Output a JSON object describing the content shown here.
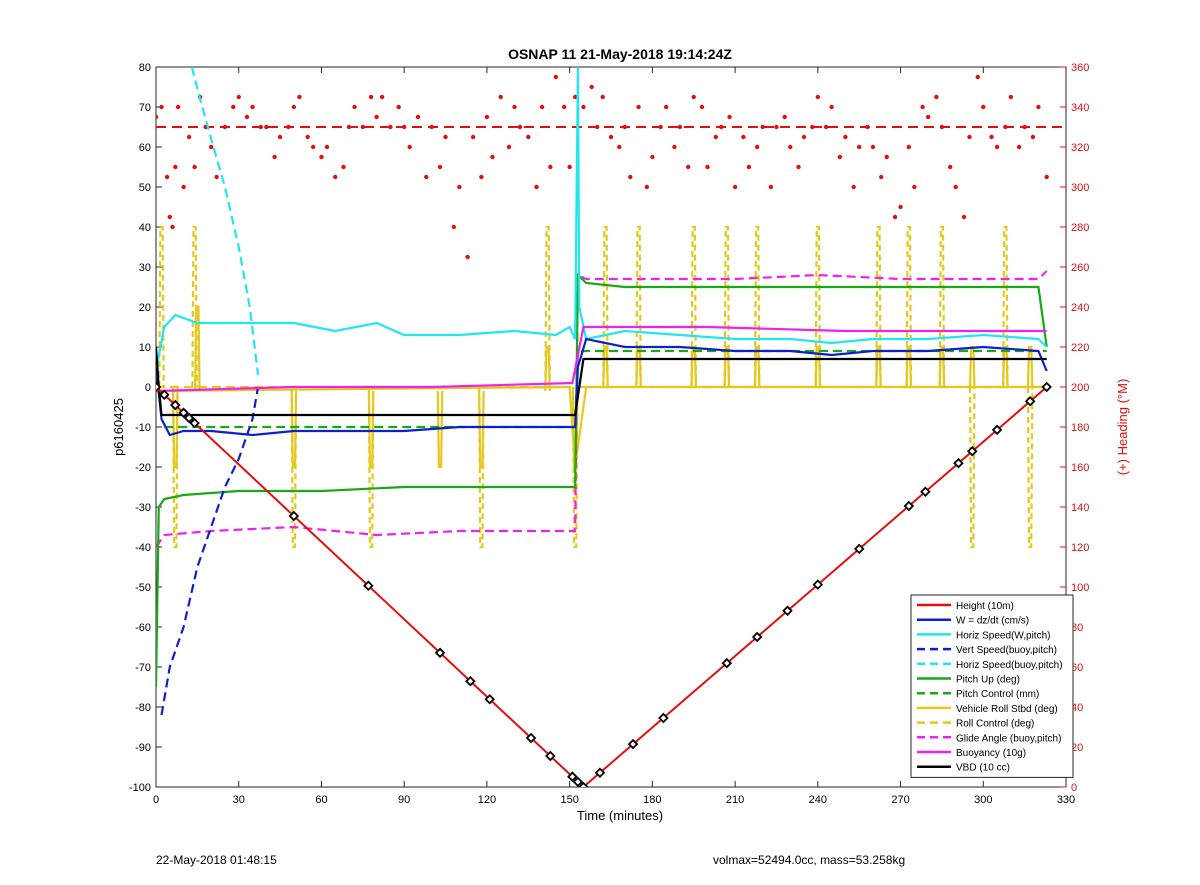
{
  "figure": {
    "footer_left": "22-May-2018 01:48:15",
    "footer_right": "volmax=52494.0cc, mass=53.258kg"
  },
  "chart_data": {
    "type": "line",
    "title": "OSNAP 11 21-May-2018 19:14:24Z",
    "xlabel": "Time (minutes)",
    "ylabel": "p6160425",
    "ylabel_right": "(+) Heading (°M)",
    "xlim": [
      0,
      330
    ],
    "ylim": [
      -100,
      80
    ],
    "ylim_right": [
      0,
      360
    ],
    "xticks": [
      0,
      30,
      60,
      90,
      120,
      150,
      180,
      210,
      240,
      270,
      300,
      330
    ],
    "yticks": [
      -100,
      -90,
      -80,
      -70,
      -60,
      -50,
      -40,
      -30,
      -20,
      -10,
      0,
      10,
      20,
      30,
      40,
      50,
      60,
      70,
      80
    ],
    "yticks_right": [
      0,
      20,
      40,
      60,
      80,
      100,
      120,
      140,
      160,
      180,
      200,
      220,
      240,
      260,
      280,
      300,
      320,
      340,
      360
    ],
    "grid": false,
    "legend_position": "bottom-right",
    "colors": {
      "red": "#e01010",
      "blue": "#1020c8",
      "cyan": "#22e6ee",
      "green": "#18a818",
      "yellow": "#e6c81c",
      "magenta": "#ee22ee",
      "black": "#000000",
      "axis_right": "#e01010"
    },
    "series": [
      {
        "name": "Height (10m)",
        "color": "#e01010",
        "style": "solid",
        "axis": "left",
        "x": [
          0,
          155,
          323
        ],
        "y": [
          0,
          -100,
          0
        ],
        "markers": [
          0,
          3,
          7,
          10,
          12,
          14,
          50,
          77,
          103,
          114,
          121,
          136,
          143,
          151,
          153,
          155,
          161,
          173,
          184,
          207,
          218,
          229,
          240,
          255,
          273,
          279,
          291,
          296,
          305,
          317,
          323
        ]
      },
      {
        "name": "W = dz/dt (cm/s)",
        "color": "#1020c8",
        "style": "solid",
        "axis": "left",
        "x": [
          0,
          2,
          5,
          10,
          20,
          35,
          50,
          70,
          90,
          110,
          130,
          145,
          152,
          153,
          156,
          170,
          190,
          210,
          230,
          245,
          260,
          280,
          300,
          320,
          323
        ],
        "y": [
          5,
          -8,
          -12,
          -11,
          -11,
          -12,
          -11,
          -11,
          -11,
          -10,
          -10,
          -10,
          -10,
          5,
          12,
          10,
          10,
          9,
          9,
          8,
          9,
          9,
          10,
          9,
          4
        ]
      },
      {
        "name": "Horiz Speed(W,pitch)",
        "color": "#22e6ee",
        "style": "solid",
        "axis": "left",
        "x": [
          0,
          3,
          7,
          15,
          30,
          50,
          65,
          80,
          90,
          110,
          130,
          145,
          150,
          152,
          153,
          153.5,
          156,
          170,
          190,
          210,
          230,
          245,
          260,
          280,
          300,
          320,
          323
        ],
        "y": [
          4,
          15,
          18,
          16,
          16,
          16,
          14,
          16,
          13,
          13,
          14,
          13,
          15,
          12,
          80,
          20,
          12,
          14,
          13,
          12,
          12,
          11,
          12,
          12,
          13,
          12,
          10
        ]
      },
      {
        "name": "Vert Speed(buoy,pitch)",
        "color": "#1020c8",
        "style": "dashed",
        "axis": "left",
        "x": [
          2,
          5,
          10,
          15,
          20,
          25,
          30,
          35,
          37
        ],
        "y": [
          -82,
          -70,
          -60,
          -45,
          -35,
          -25,
          -18,
          -8,
          0
        ]
      },
      {
        "name": "Horiz Speed(buoy,pitch)",
        "color": "#22e6ee",
        "style": "dashed",
        "axis": "left",
        "x": [
          13,
          16,
          20,
          25,
          30,
          34,
          37
        ],
        "y": [
          80,
          72,
          62,
          50,
          35,
          20,
          3
        ]
      },
      {
        "name": "Pitch Up (deg)",
        "color": "#18a818",
        "style": "solid",
        "axis": "left",
        "x": [
          0,
          1,
          3,
          10,
          30,
          60,
          90,
          120,
          140,
          152,
          153,
          156,
          170,
          200,
          230,
          260,
          290,
          320,
          323
        ],
        "y": [
          -75,
          -30,
          -28,
          -27,
          -26,
          -26,
          -25,
          -25,
          -25,
          -25,
          28,
          26,
          25,
          25,
          25,
          25,
          25,
          25,
          10
        ]
      },
      {
        "name": "Pitch Control (mm)",
        "color": "#18a818",
        "style": "dashed",
        "axis": "left",
        "x": [
          3,
          152,
          153,
          323
        ],
        "y": [
          -10,
          -10,
          9,
          9
        ]
      },
      {
        "name": "Vehicle Roll Stbd (deg)",
        "color": "#e6c81c",
        "style": "solid",
        "axis": "left",
        "x": [
          0,
          150,
          152,
          156,
          323
        ],
        "y": [
          -1,
          0,
          -20,
          0,
          0
        ],
        "spikes": [
          7,
          15,
          50,
          78,
          103,
          118,
          142,
          152,
          163,
          175,
          195,
          207,
          218,
          240,
          262,
          273,
          285,
          296,
          308,
          317
        ],
        "spike_values": [
          -20,
          20,
          -20,
          -20,
          -20,
          -20,
          10,
          -20,
          10,
          10,
          10,
          10,
          10,
          10,
          10,
          10,
          10,
          10,
          10,
          10
        ]
      },
      {
        "name": "Roll Control (deg)",
        "color": "#e6c81c",
        "style": "dashed",
        "axis": "left",
        "x": [
          0,
          323
        ],
        "y": [
          0,
          0
        ],
        "spikes": [
          2,
          7,
          14,
          50,
          78,
          118,
          142,
          152,
          163,
          175,
          195,
          207,
          218,
          240,
          262,
          273,
          285,
          296,
          308,
          317
        ],
        "spike_values": [
          40,
          -40,
          40,
          -40,
          -40,
          -40,
          40,
          -40,
          40,
          40,
          40,
          40,
          40,
          40,
          40,
          40,
          40,
          -40,
          40,
          -40
        ]
      },
      {
        "name": "Glide Angle (buoy,pitch)",
        "color": "#ee22ee",
        "style": "dashed",
        "axis": "left",
        "x": [
          0,
          3,
          20,
          50,
          80,
          110,
          140,
          152,
          153,
          156,
          180,
          210,
          240,
          270,
          300,
          320,
          323
        ],
        "y": [
          -40,
          -37,
          -36,
          -35,
          -37,
          -36,
          -36,
          -36,
          28,
          27,
          27,
          27,
          28,
          27,
          27,
          27,
          29
        ]
      },
      {
        "name": "Buoyancy (10g)",
        "color": "#ee22ee",
        "style": "solid",
        "axis": "left",
        "x": [
          0,
          50,
          100,
          151,
          155,
          200,
          250,
          323
        ],
        "y": [
          -1,
          0,
          0,
          1,
          15,
          15,
          14,
          14
        ]
      },
      {
        "name": "VBD (10 cc)",
        "color": "#000000",
        "style": "solid",
        "axis": "left",
        "x": [
          0,
          1,
          2,
          152,
          155,
          200,
          322,
          323
        ],
        "y": [
          10,
          0,
          -7,
          -7,
          7,
          7,
          7,
          7
        ]
      },
      {
        "name": "Heading",
        "color": "#e01010",
        "style": "dots",
        "axis": "right",
        "x": [
          0,
          2,
          4,
          5,
          6,
          7,
          8,
          10,
          12,
          14,
          16,
          18,
          20,
          22,
          25,
          28,
          30,
          33,
          35,
          38,
          40,
          43,
          45,
          48,
          50,
          52,
          55,
          57,
          60,
          62,
          65,
          68,
          70,
          72,
          75,
          78,
          80,
          82,
          85,
          88,
          90,
          92,
          95,
          98,
          100,
          103,
          105,
          108,
          110,
          113,
          115,
          118,
          120,
          122,
          125,
          128,
          130,
          132,
          135,
          138,
          140,
          143,
          145,
          148,
          150,
          152,
          155,
          158,
          160,
          162,
          165,
          168,
          170,
          172,
          175,
          178,
          180,
          183,
          185,
          188,
          190,
          193,
          195,
          198,
          200,
          203,
          205,
          208,
          210,
          213,
          215,
          218,
          220,
          223,
          225,
          228,
          230,
          233,
          235,
          238,
          240,
          243,
          245,
          248,
          250,
          253,
          255,
          258,
          260,
          263,
          265,
          268,
          270,
          273,
          275,
          278,
          280,
          283,
          285,
          288,
          290,
          293,
          295,
          298,
          300,
          303,
          305,
          308,
          310,
          313,
          315,
          318,
          320,
          323
        ],
        "y": [
          335,
          340,
          305,
          285,
          280,
          310,
          340,
          300,
          325,
          310,
          345,
          330,
          320,
          305,
          330,
          340,
          345,
          335,
          340,
          330,
          330,
          315,
          325,
          330,
          340,
          345,
          325,
          320,
          315,
          320,
          305,
          310,
          330,
          340,
          330,
          345,
          335,
          345,
          330,
          340,
          330,
          320,
          335,
          305,
          330,
          310,
          325,
          280,
          300,
          265,
          325,
          305,
          335,
          315,
          345,
          320,
          340,
          330,
          325,
          300,
          340,
          310,
          355,
          340,
          310,
          345,
          340,
          350,
          330,
          345,
          325,
          320,
          330,
          305,
          340,
          300,
          315,
          330,
          340,
          320,
          330,
          310,
          345,
          340,
          310,
          325,
          330,
          335,
          300,
          325,
          310,
          320,
          330,
          300,
          330,
          335,
          320,
          310,
          325,
          330,
          345,
          330,
          340,
          315,
          325,
          300,
          320,
          330,
          320,
          305,
          315,
          285,
          290,
          320,
          300,
          340,
          335,
          345,
          330,
          310,
          300,
          285,
          325,
          355,
          340,
          325,
          320,
          330,
          345,
          320,
          330,
          325,
          340,
          305
        ]
      }
    ]
  }
}
